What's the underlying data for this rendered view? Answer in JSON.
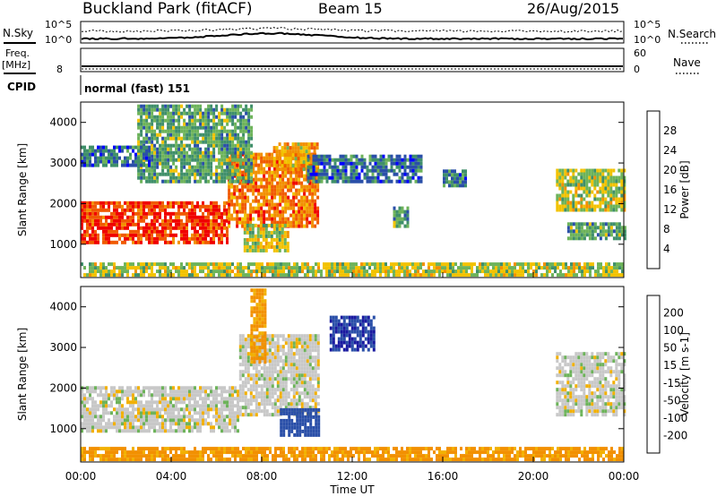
{
  "header": {
    "site": "Buckland Park (fitACF)",
    "beam": "Beam 15",
    "date": "26/Aug/2015"
  },
  "top_panels": {
    "nsky_label": "N.Sky",
    "nsearch_label": "N.Search",
    "nsky_ticks": [
      "10^5",
      "10^0"
    ],
    "nsearch_ticks": [
      "10^5",
      "10^0"
    ],
    "freq_label": "Freq.",
    "freq_unit": "[MHz]",
    "freq_tick": "8",
    "nave_label": "Nave",
    "nave_ticks": [
      "60",
      "0"
    ],
    "cpid_label": "CPID",
    "cpid_value": "normal (fast) 151"
  },
  "colors": {
    "power_scale": [
      "#0000ff",
      "#2a4fa8",
      "#3f8f6a",
      "#6db35a",
      "#f2c200",
      "#f29000",
      "#f05a00",
      "#f00000"
    ],
    "velocity_scale": [
      "#f00000",
      "#f05a00",
      "#f29000",
      "#f2b000",
      "#c8c8c8",
      "#6db35a",
      "#2a8f2a",
      "#2a4fa8",
      "#1a1aa0"
    ]
  },
  "chart_data": [
    {
      "type": "heatmap",
      "name": "power",
      "ylabel": "Slant Range [km]",
      "y_ticks": [
        "1000",
        "2000",
        "3000",
        "4000"
      ],
      "colorbar_label": "Power [dB]",
      "colorbar_ticks": [
        "4",
        "8",
        "12",
        "16",
        "20",
        "24",
        "28"
      ],
      "regions": [
        {
          "t0": 0.0,
          "t1": 6.5,
          "r0": 1000,
          "r1": 2000,
          "v": 28
        },
        {
          "t0": 6.5,
          "t1": 10.5,
          "r0": 1400,
          "r1": 3200,
          "v": 24
        },
        {
          "t0": 8.5,
          "t1": 10.5,
          "r0": 2800,
          "r1": 3500,
          "v": 20
        },
        {
          "t0": 2.5,
          "t1": 7.5,
          "r0": 2500,
          "r1": 4400,
          "v": 12
        },
        {
          "t0": 0.0,
          "t1": 3.0,
          "r0": 2900,
          "r1": 3400,
          "v": 8
        },
        {
          "t0": 7.2,
          "t1": 9.2,
          "r0": 800,
          "r1": 1500,
          "v": 16
        },
        {
          "t0": 10.0,
          "t1": 15.0,
          "r0": 2500,
          "r1": 3200,
          "v": 8
        },
        {
          "t0": 13.8,
          "t1": 14.4,
          "r0": 1400,
          "r1": 1900,
          "v": 12
        },
        {
          "t0": 16.0,
          "t1": 17.0,
          "r0": 2400,
          "r1": 2800,
          "v": 8
        },
        {
          "t0": 21.0,
          "t1": 24.0,
          "r0": 1800,
          "r1": 2800,
          "v": 16
        },
        {
          "t0": 21.5,
          "t1": 24.0,
          "r0": 1100,
          "r1": 1500,
          "v": 12
        },
        {
          "t0": 0.0,
          "t1": 24.0,
          "r0": 200,
          "r1": 500,
          "v": 16
        }
      ]
    },
    {
      "type": "heatmap",
      "name": "velocity",
      "ylabel": "Slant Range [km]",
      "y_ticks": [
        "1000",
        "2000",
        "3000",
        "4000"
      ],
      "colorbar_label": "Velocity [m s-1]",
      "colorbar_ticks": [
        "200",
        "100",
        "50",
        "15",
        "-15",
        "-50",
        "-100",
        "-200"
      ],
      "regions": [
        {
          "t0": 0.0,
          "t1": 7.0,
          "r0": 900,
          "r1": 2000,
          "v": 0
        },
        {
          "t0": 7.0,
          "t1": 10.5,
          "r0": 1300,
          "r1": 3300,
          "v": 0
        },
        {
          "t0": 7.5,
          "t1": 8.2,
          "r0": 2600,
          "r1": 4400,
          "v": -60
        },
        {
          "t0": 8.8,
          "t1": 10.5,
          "r0": 800,
          "r1": 1500,
          "v": 120
        },
        {
          "t0": 11.0,
          "t1": 13.0,
          "r0": 2900,
          "r1": 3700,
          "v": 200
        },
        {
          "t0": 21.0,
          "t1": 24.0,
          "r0": 1300,
          "r1": 2800,
          "v": 0
        },
        {
          "t0": 0.0,
          "t1": 24.0,
          "r0": 200,
          "r1": 500,
          "v": -60
        }
      ]
    }
  ],
  "x_axis": {
    "label": "Time UT",
    "ticks": [
      "00:00",
      "04:00",
      "08:00",
      "12:00",
      "16:00",
      "20:00",
      "00:00"
    ]
  }
}
